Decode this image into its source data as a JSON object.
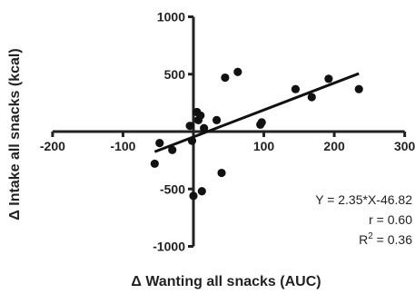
{
  "chart_data": {
    "type": "scatter",
    "title": "",
    "xlabel": "Δ Wanting all snacks (AUC)",
    "ylabel": "Δ Intake all snacks (kcal)",
    "xlim": [
      -200,
      300
    ],
    "ylim": [
      -1000,
      1000
    ],
    "x_ticks": [
      -200,
      -100,
      0,
      100,
      200,
      300
    ],
    "y_ticks": [
      -1000,
      -500,
      0,
      500,
      1000
    ],
    "x_tick_labels": [
      "-200",
      "-100",
      "",
      "100",
      "200",
      "300"
    ],
    "y_tick_labels": [
      "-1000",
      "-500",
      "",
      "500",
      "1000"
    ],
    "grid": false,
    "points": [
      {
        "x": -55,
        "y": -280
      },
      {
        "x": -48,
        "y": -100
      },
      {
        "x": -30,
        "y": -160
      },
      {
        "x": -5,
        "y": 50
      },
      {
        "x": -2,
        "y": -80
      },
      {
        "x": 0,
        "y": -560
      },
      {
        "x": 5,
        "y": 170
      },
      {
        "x": 7,
        "y": 100
      },
      {
        "x": 10,
        "y": 140
      },
      {
        "x": 12,
        "y": -520
      },
      {
        "x": 15,
        "y": 30
      },
      {
        "x": 33,
        "y": 100
      },
      {
        "x": 40,
        "y": -360
      },
      {
        "x": 45,
        "y": 470
      },
      {
        "x": 63,
        "y": 520
      },
      {
        "x": 95,
        "y": 60
      },
      {
        "x": 97,
        "y": 80
      },
      {
        "x": 145,
        "y": 370
      },
      {
        "x": 168,
        "y": 300
      },
      {
        "x": 192,
        "y": 460
      },
      {
        "x": 235,
        "y": 370
      }
    ],
    "fit_line": {
      "slope": 2.35,
      "intercept": -46.82,
      "x_range": [
        -55,
        235
      ]
    },
    "annotations": {
      "equation": "Y = 2.35*X-46.82",
      "r": "r = 0.60",
      "r2_prefix": "R",
      "r2_sup": "2",
      "r2_suffix": " = 0.36"
    }
  }
}
